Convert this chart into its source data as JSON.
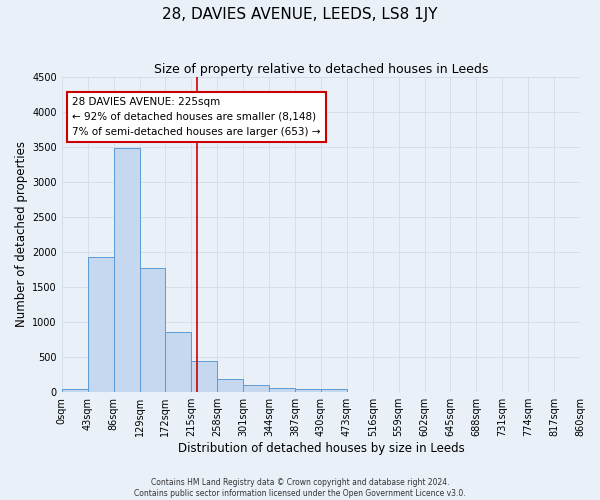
{
  "title": "28, DAVIES AVENUE, LEEDS, LS8 1JY",
  "subtitle": "Size of property relative to detached houses in Leeds",
  "xlabel": "Distribution of detached houses by size in Leeds",
  "ylabel": "Number of detached properties",
  "footer_line1": "Contains HM Land Registry data © Crown copyright and database right 2024.",
  "footer_line2": "Contains public sector information licensed under the Open Government Licence v3.0.",
  "bin_labels": [
    "0sqm",
    "43sqm",
    "86sqm",
    "129sqm",
    "172sqm",
    "215sqm",
    "258sqm",
    "301sqm",
    "344sqm",
    "387sqm",
    "430sqm",
    "473sqm",
    "516sqm",
    "559sqm",
    "602sqm",
    "645sqm",
    "688sqm",
    "731sqm",
    "774sqm",
    "817sqm",
    "860sqm"
  ],
  "bin_edges": [
    0,
    43,
    86,
    129,
    172,
    215,
    258,
    301,
    344,
    387,
    430,
    473,
    516,
    559,
    602,
    645,
    688,
    731,
    774,
    817,
    860
  ],
  "bar_heights": [
    50,
    1930,
    3480,
    1770,
    860,
    450,
    185,
    100,
    65,
    50,
    50,
    0,
    0,
    0,
    0,
    0,
    0,
    0,
    0,
    0
  ],
  "bar_color": "#c5d8f0",
  "bar_edge_color": "#5b9bd5",
  "property_size": 225,
  "vline_color": "#cc0000",
  "annotation_line1": "28 DAVIES AVENUE: 225sqm",
  "annotation_line2": "← 92% of detached houses are smaller (8,148)",
  "annotation_line3": "7% of semi-detached houses are larger (653) →",
  "annotation_box_color": "#ffffff",
  "annotation_box_edgecolor": "#cc0000",
  "ylim": [
    0,
    4500
  ],
  "xlim": [
    0,
    860
  ],
  "background_color": "#eaf0f8",
  "grid_color": "#d0dce8",
  "title_fontsize": 11,
  "subtitle_fontsize": 9,
  "axis_label_fontsize": 8.5,
  "tick_fontsize": 7,
  "annotation_fontsize": 7.5,
  "footer_fontsize": 5.5
}
